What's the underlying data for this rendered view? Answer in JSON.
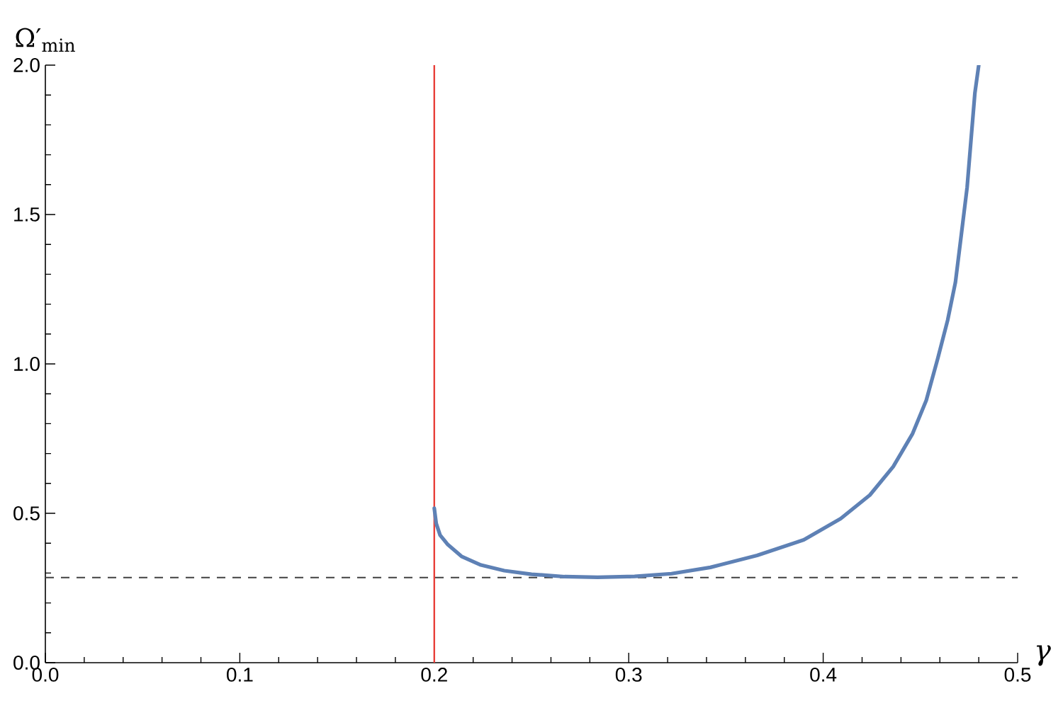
{
  "chart_data": {
    "type": "line",
    "xlabel": "γ",
    "ylabel": "Ω′$_{min}$",
    "xlim": [
      0,
      0.5
    ],
    "ylim": [
      0,
      2
    ],
    "xticks": [
      {
        "value": 0,
        "label": "0.0"
      },
      {
        "value": 0.02,
        "label": null
      },
      {
        "value": 0.04,
        "label": null
      },
      {
        "value": 0.06,
        "label": null
      },
      {
        "value": 0.08,
        "label": null
      },
      0.1,
      {
        "value": 0.12,
        "label": null
      },
      {
        "value": 0.14,
        "label": null
      },
      {
        "value": 0.16,
        "label": null
      },
      {
        "value": 0.18,
        "label": null
      },
      0.2,
      {
        "value": 0.22,
        "label": null
      },
      {
        "value": 0.24,
        "label": null
      },
      {
        "value": 0.26,
        "label": null
      },
      {
        "value": 0.28,
        "label": null
      },
      0.3,
      {
        "value": 0.32,
        "label": null
      },
      {
        "value": 0.34,
        "label": null
      },
      {
        "value": 0.36,
        "label": null
      },
      {
        "value": 0.38,
        "label": null
      },
      0.4,
      {
        "value": 0.42,
        "label": null
      },
      {
        "value": 0.44,
        "label": null
      },
      {
        "value": 0.46,
        "label": null
      },
      {
        "value": 0.48,
        "label": null
      },
      0.5
    ],
    "yticks": [
      {
        "value": 0,
        "label": "0.0"
      },
      {
        "value": 0.1,
        "label": null
      },
      {
        "value": 0.2,
        "label": null
      },
      {
        "value": 0.3,
        "label": null
      },
      {
        "value": 0.4,
        "label": null
      },
      0.5,
      {
        "value": 0.6,
        "label": null
      },
      {
        "value": 0.7,
        "label": null
      },
      {
        "value": 0.8,
        "label": null
      },
      {
        "value": 0.9,
        "label": null
      },
      {
        "value": 1,
        "label": "1.0"
      },
      {
        "value": 1.1,
        "label": null
      },
      {
        "value": 1.2,
        "label": null
      },
      {
        "value": 1.3,
        "label": null
      },
      {
        "value": 1.4,
        "label": null
      },
      1.5,
      {
        "value": 1.6,
        "label": null
      },
      {
        "value": 1.7,
        "label": null
      },
      {
        "value": 1.8,
        "label": null
      },
      {
        "value": 1.9,
        "label": null
      },
      {
        "value": 2,
        "label": "2.0"
      }
    ],
    "ref_lines": [
      {
        "axis": "x",
        "value": 0.2,
        "color": "#e8403a"
      },
      {
        "axis": "y",
        "value": 0.285,
        "color": "#404040",
        "line_style": "dashed"
      }
    ],
    "series": [
      {
        "color": "#5e81b5",
        "x": [
          0.2,
          0.201,
          0.203,
          0.207,
          0.214,
          0.224,
          0.236,
          0.25,
          0.267,
          0.284,
          0.303,
          0.322,
          0.342,
          0.366,
          0.39,
          0.409,
          0.424,
          0.436,
          0.446,
          0.453,
          0.459,
          0.464,
          0.468,
          0.471,
          0.474,
          0.476,
          0.478,
          0.48
        ],
        "values": [
          0.517,
          0.466,
          0.427,
          0.395,
          0.356,
          0.327,
          0.308,
          0.296,
          0.288,
          0.286,
          0.289,
          0.298,
          0.319,
          0.359,
          0.411,
          0.482,
          0.561,
          0.656,
          0.767,
          0.878,
          1.02,
          1.146,
          1.273,
          1.431,
          1.59,
          1.748,
          1.906,
          2.0
        ]
      }
    ]
  }
}
